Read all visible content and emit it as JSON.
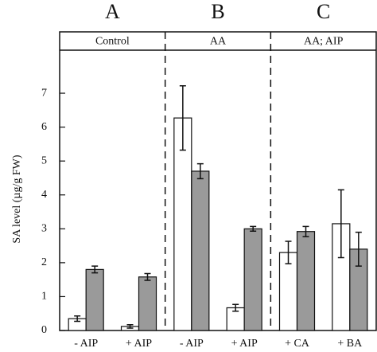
{
  "chart_data": {
    "type": "bar",
    "y_label": "SA level (µg/g FW)",
    "panels": [
      {
        "letter": "A",
        "label": "Control"
      },
      {
        "letter": "B",
        "label": "AA"
      },
      {
        "letter": "C",
        "label": "AA; AIP"
      }
    ],
    "categories": [
      "- AIP",
      "+ AIP",
      "- AIP",
      "+ AIP",
      "+ CA",
      "+ BA"
    ],
    "series": [
      {
        "color": "#ffffff",
        "values": [
          0.35,
          0.12,
          6.27,
          0.67,
          2.3,
          3.15
        ],
        "errors": [
          0.08,
          0.05,
          0.95,
          0.1,
          0.33,
          1.0
        ]
      },
      {
        "color": "#9a9a9a",
        "values": [
          1.8,
          1.58,
          4.7,
          3.0,
          2.92,
          2.4
        ],
        "errors": [
          0.1,
          0.1,
          0.22,
          0.07,
          0.15,
          0.5
        ]
      }
    ],
    "ylim": [
      0,
      8.27
    ],
    "yticks": [
      0,
      1,
      2,
      3,
      4,
      5,
      6,
      7
    ]
  }
}
